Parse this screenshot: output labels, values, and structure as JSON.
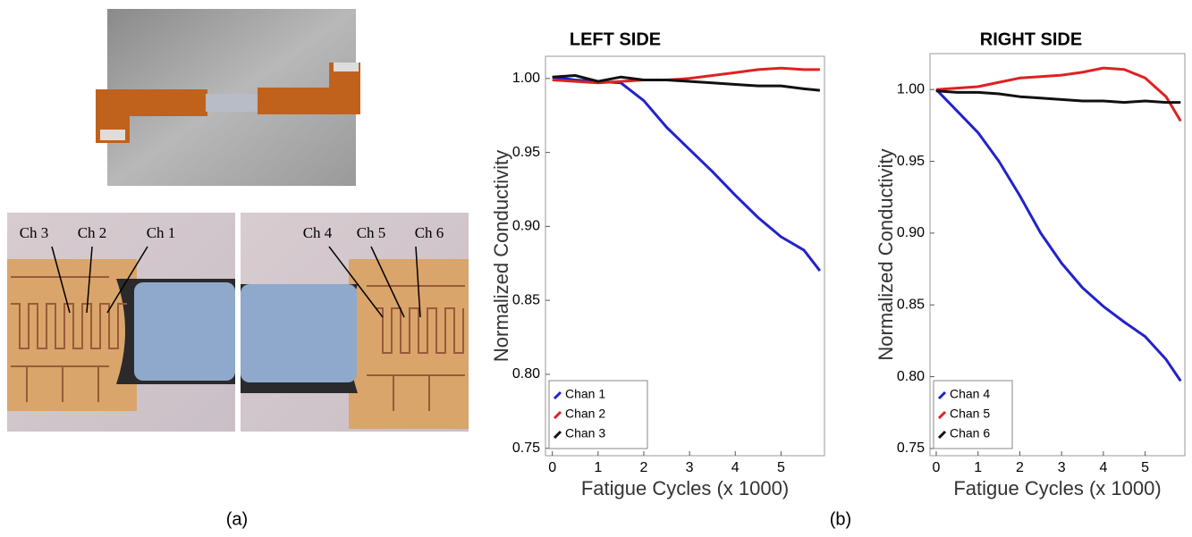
{
  "panel_labels": [
    "(a)",
    "(b)"
  ],
  "photo_labels": [
    "Ch 3",
    "Ch 2",
    "Ch 1",
    "Ch 4",
    "Ch 5",
    "Ch 6"
  ],
  "chart_data": [
    {
      "type": "line",
      "title": "LEFT SIDE",
      "x_label": "Fatigue Cycles (x 1000)",
      "y_label": "Normalized Conductivity",
      "x": [
        0,
        0.5,
        1,
        1.5,
        2,
        2.5,
        3,
        3.5,
        4,
        4.5,
        5,
        5.5,
        5.85
      ],
      "series": [
        {
          "name": "Chan 1",
          "color": "#2222cc",
          "values": [
            1.001,
            0.999,
            0.998,
            0.997,
            0.985,
            0.967,
            0.952,
            0.937,
            0.921,
            0.906,
            0.893,
            0.884,
            0.87
          ]
        },
        {
          "name": "Chan 2",
          "color": "#dd2222",
          "values": [
            0.999,
            0.998,
            0.997,
            0.998,
            0.999,
            0.999,
            1.0,
            1.002,
            1.004,
            1.006,
            1.007,
            1.006,
            1.006
          ]
        },
        {
          "name": "Chan 3",
          "color": "#111111",
          "values": [
            1.001,
            1.002,
            0.998,
            1.001,
            0.999,
            0.999,
            0.998,
            0.997,
            0.996,
            0.995,
            0.995,
            0.993,
            0.992
          ]
        }
      ],
      "xlim": [
        -0.15,
        5.95
      ],
      "xticks": [
        0,
        1,
        2,
        3,
        4,
        5
      ],
      "ylim": [
        0.745,
        1.015
      ],
      "yticks": [
        {
          "value": 0.75,
          "label": "0.75"
        },
        {
          "value": 0.8,
          "label": "0.80"
        },
        {
          "value": 0.85,
          "label": "0.85"
        },
        {
          "value": 0.9,
          "label": "0.90"
        },
        {
          "value": 0.95,
          "label": "0.95"
        },
        {
          "value": 1.0,
          "label": "1.00"
        }
      ],
      "legend": "lower left",
      "grid": false
    },
    {
      "type": "line",
      "title": "RIGHT SIDE",
      "x_label": "Fatigue Cycles (x 1000)",
      "y_label": "Normalized Conductivity",
      "x": [
        0,
        0.5,
        1,
        1.5,
        2,
        2.5,
        3,
        3.5,
        4,
        4.5,
        5,
        5.5,
        5.85
      ],
      "series": [
        {
          "name": "Chan 4",
          "color": "#2222cc",
          "values": [
            1.0,
            0.985,
            0.97,
            0.95,
            0.926,
            0.9,
            0.879,
            0.862,
            0.849,
            0.838,
            0.828,
            0.812,
            0.797
          ]
        },
        {
          "name": "Chan 5",
          "color": "#dd2222",
          "values": [
            1.0,
            1.001,
            1.002,
            1.005,
            1.008,
            1.009,
            1.01,
            1.012,
            1.015,
            1.014,
            1.008,
            0.995,
            0.978
          ]
        },
        {
          "name": "Chan 6",
          "color": "#111111",
          "values": [
            0.999,
            0.998,
            0.998,
            0.997,
            0.995,
            0.994,
            0.993,
            0.992,
            0.992,
            0.991,
            0.992,
            0.991,
            0.991
          ]
        }
      ],
      "xlim": [
        -0.15,
        5.95
      ],
      "xticks": [
        0,
        1,
        2,
        3,
        4,
        5
      ],
      "ylim": [
        0.745,
        1.025
      ],
      "yticks": [
        {
          "value": 0.75,
          "label": "0.75"
        },
        {
          "value": 0.8,
          "label": "0.80"
        },
        {
          "value": 0.85,
          "label": "0.85"
        },
        {
          "value": 0.9,
          "label": "0.90"
        },
        {
          "value": 0.95,
          "label": "0.95"
        },
        {
          "value": 1.0,
          "label": "1.00"
        }
      ],
      "legend": "lower left",
      "grid": false
    }
  ]
}
